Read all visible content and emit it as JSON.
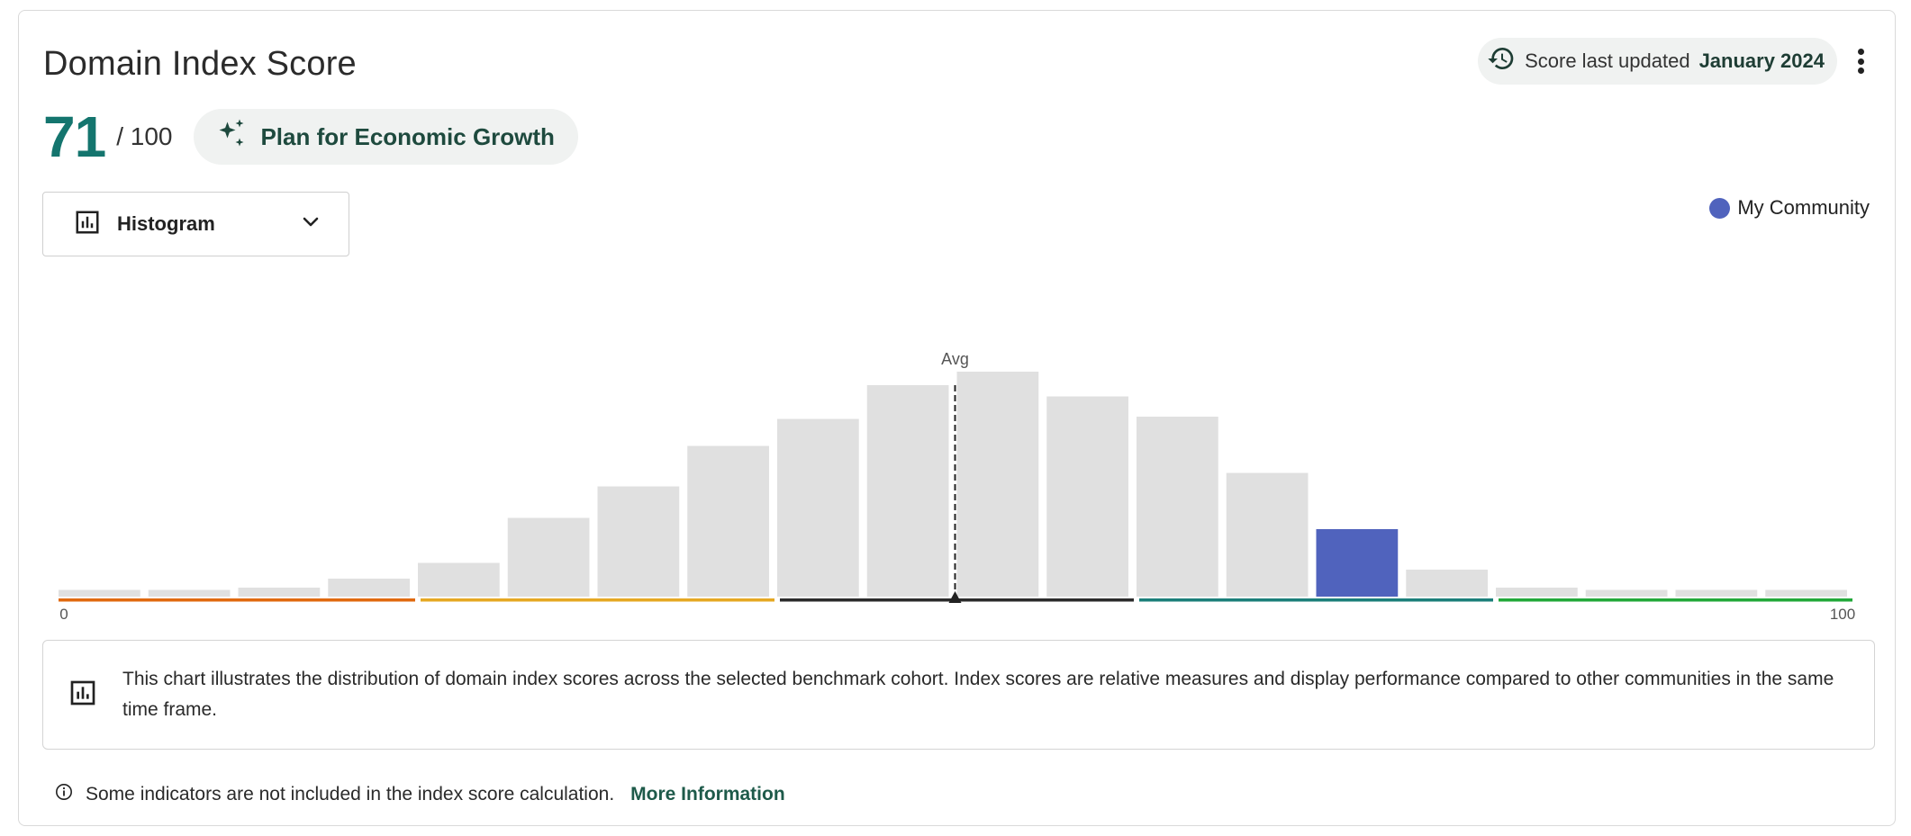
{
  "header": {
    "title": "Domain Index Score",
    "updated_prefix": "Score last updated",
    "updated_date": "January 2024",
    "updated_icon": "history-icon",
    "menu_icon": "more-vert-icon"
  },
  "score": {
    "value": "71",
    "max_label": "/ 100",
    "plan_label": "Plan for Economic Growth",
    "plan_icon": "sparkle-icon"
  },
  "view_selector": {
    "selected": "Histogram",
    "icon": "bar-chart-icon",
    "chevron": "chevron-down-icon"
  },
  "legend": {
    "label": "My Community",
    "color": "#5063bd"
  },
  "info": {
    "text": "This chart illustrates the distribution of domain index scores across the selected benchmark cohort. Index scores are relative measures and display performance compared to other communities in the same time frame.",
    "icon": "bar-chart-icon"
  },
  "footnote": {
    "text": "Some indicators are not included in the index score calculation.",
    "link": "More Information",
    "icon": "info-icon"
  },
  "chart_data": {
    "type": "bar",
    "title": "",
    "xlabel": "",
    "ylabel": "",
    "xlim": [
      0,
      100
    ],
    "x_tick_labels": [
      "0",
      "100"
    ],
    "bin_count": 20,
    "relative_heights": [
      0.03,
      0.03,
      0.04,
      0.08,
      0.15,
      0.35,
      0.49,
      0.67,
      0.79,
      0.94,
      1.0,
      0.89,
      0.8,
      0.55,
      0.3,
      0.12,
      0.04,
      0.03,
      0.03,
      0.03
    ],
    "highlight_bin_index": 14,
    "highlight_label": "My Community",
    "bar_color": "#e0e0e0",
    "highlight_color": "#5063bd",
    "average_label": "Avg",
    "average_value": 50,
    "bands": [
      {
        "from": 0,
        "to": 20,
        "color": "#e0690f"
      },
      {
        "from": 20,
        "to": 40,
        "color": "#e5a823"
      },
      {
        "from": 40,
        "to": 60,
        "color": "#2b2b2b"
      },
      {
        "from": 60,
        "to": 80,
        "color": "#1b7f7a"
      },
      {
        "from": 80,
        "to": 100,
        "color": "#22a83a"
      }
    ]
  }
}
